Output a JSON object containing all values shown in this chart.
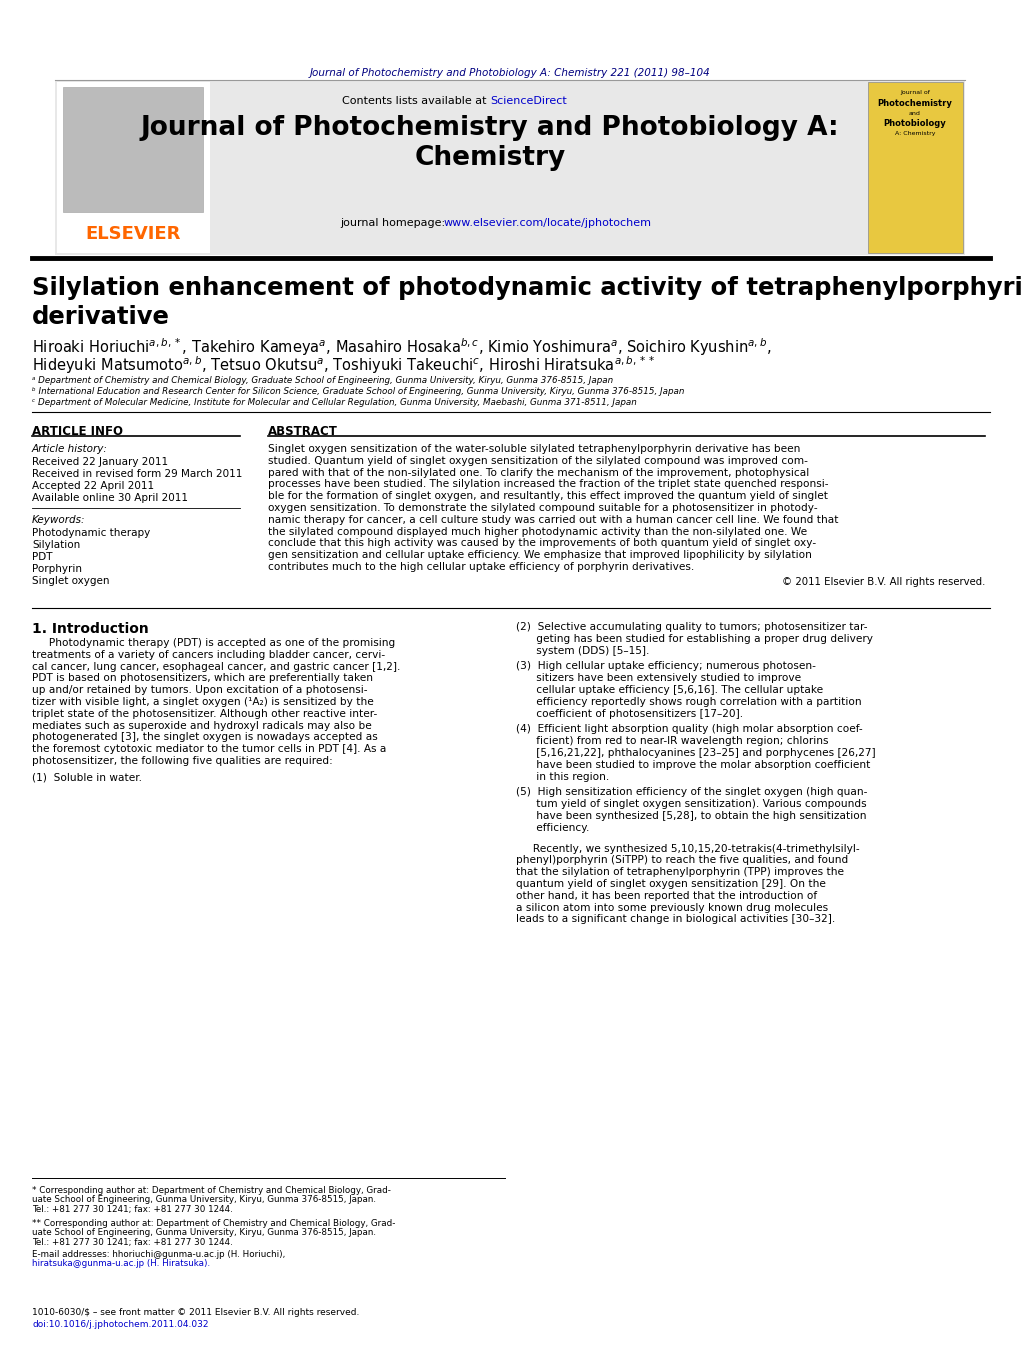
{
  "page_title_journal": "Journal of Photochemistry and Photobiology A: Chemistry 221 (2011) 98–104",
  "header_text1": "Contents lists available at ScienceDirect",
  "header_journal_title": "Journal of Photochemistry and Photobiology A:\nChemistry",
  "header_homepage": "journal homepage: www.elsevier.com/locate/jphotochem",
  "article_title": "Silylation enhancement of photodynamic activity of tetraphenylporphyrin\nderivative",
  "affil_a": "ᵃ Department of Chemistry and Chemical Biology, Graduate School of Engineering, Gunma University, Kiryu, Gunma 376-8515, Japan",
  "affil_b": "ᵇ International Education and Research Center for Silicon Science, Graduate School of Engineering, Gunma University, Kiryu, Gunma 376-8515, Japan",
  "affil_c": "ᶜ Department of Molecular Medicine, Institute for Molecular and Cellular Regulation, Gunma University, Maebashi, Gunma 371-8511, Japan",
  "article_info_label": "ARTICLE INFO",
  "abstract_label": "ABSTRACT",
  "article_history_label": "Article history:",
  "received": "Received 22 January 2011",
  "revised": "Received in revised form 29 March 2011",
  "accepted": "Accepted 22 April 2011",
  "available": "Available online 30 April 2011",
  "keywords_label": "Keywords:",
  "keyword1": "Photodynamic therapy",
  "keyword2": "Silylation",
  "keyword3": "PDT",
  "keyword4": "Porphyrin",
  "keyword5": "Singlet oxygen",
  "abstract_text": "Singlet oxygen sensitization of the water-soluble silylated tetraphenylporphyrin derivative has been\nstudied. Quantum yield of singlet oxygen sensitization of the silylated compound was improved com-\npared with that of the non-silylated one. To clarify the mechanism of the improvement, photophysical\nprocesses have been studied. The silylation increased the fraction of the triplet state quenched responsi-\nble for the formation of singlet oxygen, and resultantly, this effect improved the quantum yield of singlet\noxygen sensitization. To demonstrate the silylated compound suitable for a photosensitizer in photody-\nnamic therapy for cancer, a cell culture study was carried out with a human cancer cell line. We found that\nthe silylated compound displayed much higher photodynamic activity than the non-silylated one. We\nconclude that this high activity was caused by the improvements of both quantum yield of singlet oxy-\ngen sensitization and cellular uptake efficiency. We emphasize that improved lipophilicity by silylation\ncontributes much to the high cellular uptake efficiency of porphyrin derivatives.",
  "copyright": "© 2011 Elsevier B.V. All rights reserved.",
  "intro_heading": "1. Introduction",
  "intro_text_lines": [
    "     Photodynamic therapy (PDT) is accepted as one of the promising",
    "treatments of a variety of cancers including bladder cancer, cervi-",
    "cal cancer, lung cancer, esophageal cancer, and gastric cancer [1,2].",
    "PDT is based on photosensitizers, which are preferentially taken",
    "up and/or retained by tumors. Upon excitation of a photosensi-",
    "tizer with visible light, a singlet oxygen (¹A₂) is sensitized by the",
    "triplet state of the photosensitizer. Although other reactive inter-",
    "mediates such as superoxide and hydroxyl radicals may also be",
    "photogenerated [3], the singlet oxygen is nowadays accepted as",
    "the foremost cytotoxic mediator to the tumor cells in PDT [4]. As a",
    "photosensitizer, the following five qualities are required:"
  ],
  "list_item_1_lines": [
    "(1)  Soluble in water."
  ],
  "list_item_2_lines": [
    "(2)  Selective accumulating quality to tumors; photosensitizer tar-",
    "      geting has been studied for establishing a proper drug delivery",
    "      system (DDS) [5–15]."
  ],
  "list_item_3_lines": [
    "(3)  High cellular uptake efficiency; numerous photosen-",
    "      sitizers have been extensively studied to improve",
    "      cellular uptake efficiency [5,6,16]. The cellular uptake",
    "      efficiency reportedly shows rough correlation with a partition",
    "      coefficient of photosensitizers [17–20]."
  ],
  "list_item_4_lines": [
    "(4)  Efficient light absorption quality (high molar absorption coef-",
    "      ficient) from red to near-IR wavelength region; chlorins",
    "      [5,16,21,22], phthalocyanines [23–25] and porphycenes [26,27]",
    "      have been studied to improve the molar absorption coefficient",
    "      in this region."
  ],
  "list_item_5_lines": [
    "(5)  High sensitization efficiency of the singlet oxygen (high quan-",
    "      tum yield of singlet oxygen sensitization). Various compounds",
    "      have been synthesized [5,28], to obtain the high sensitization",
    "      efficiency."
  ],
  "right_col_lines": [
    "     Recently, we synthesized 5,10,15,20-tetrakis(4-trimethylsilyl-",
    "phenyl)porphyrin (SiTPP) to reach the five qualities, and found",
    "that the silylation of tetraphenylporphyrin (TPP) improves the",
    "quantum yield of singlet oxygen sensitization [29]. On the",
    "other hand, it has been reported that the introduction of",
    "a silicon atom into some previously known drug molecules",
    "leads to a significant change in biological activities [30–32]."
  ],
  "footer_note1_lines": [
    "* Corresponding author at: Department of Chemistry and Chemical Biology, Grad-",
    "uate School of Engineering, Gunma University, Kiryu, Gunma 376-8515, Japan.",
    "Tel.: +81 277 30 1241; fax: +81 277 30 1244."
  ],
  "footer_note2_lines": [
    "** Corresponding author at: Department of Chemistry and Chemical Biology, Grad-",
    "uate School of Engineering, Gunma University, Kiryu, Gunma 376-8515, Japan.",
    "Tel.: +81 277 30 1241; fax: +81 277 30 1244."
  ],
  "email_line1": "E-mail addresses: hhoriuchi@gunma-u.ac.jp (H. Horiuchi),",
  "email_line2": "hiratsuka@gunma-u.ac.jp (H. Hiratsuka).",
  "issn_line": "1010-6030/$ – see front matter © 2011 Elsevier B.V. All rights reserved.",
  "doi_line": "doi:10.1016/j.jphotochem.2011.04.032",
  "elsevier_color": "#FF6600",
  "link_color": "#0000CC",
  "dark_navy": "#000080",
  "header_bg": "#E8E8E8",
  "cover_yellow": "#E8C840",
  "tree_gray": "#BBBBBB"
}
